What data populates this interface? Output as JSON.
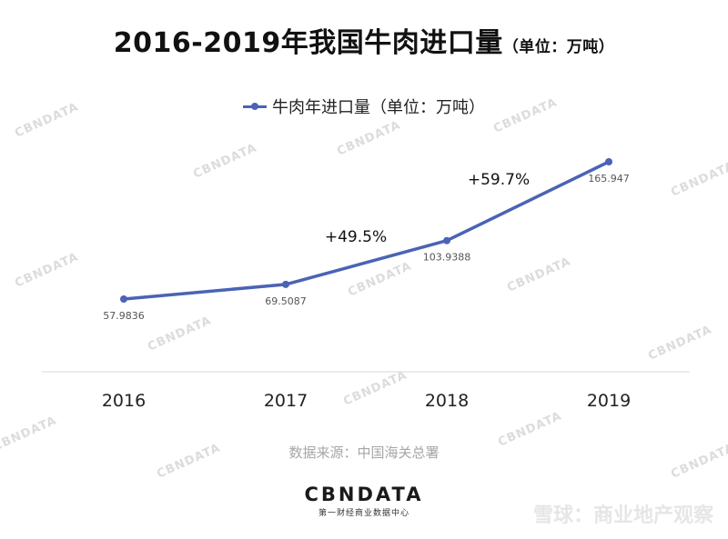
{
  "header": {
    "title": "2016-2019年我国牛肉进口量",
    "unit": "（单位：万吨）"
  },
  "legend": {
    "label": "牛肉年进口量（单位：万吨）"
  },
  "chart_data": {
    "type": "line",
    "categories": [
      "2016",
      "2017",
      "2018",
      "2019"
    ],
    "series": [
      {
        "name": "牛肉年进口量（单位：万吨）",
        "values": [
          57.9836,
          69.5087,
          103.9388,
          165.947
        ],
        "data_labels": [
          "57.9836",
          "69.5087",
          "103.9388",
          "165.947"
        ],
        "color": "#4a63b5"
      }
    ],
    "annotations": [
      {
        "between": [
          "2017",
          "2018"
        ],
        "text": "+49.5%"
      },
      {
        "between": [
          "2018",
          "2019"
        ],
        "text": "+59.7%"
      }
    ],
    "title": "2016-2019年我国牛肉进口量",
    "xlabel": "",
    "ylabel": "",
    "ylim": [
      0,
      190
    ],
    "grid": false,
    "legend_position": "top-center"
  },
  "footer": {
    "source": "数据来源：中国海关总署",
    "brand_logo": "CBNDATA",
    "brand_tagline": "第一财经商业数据中心",
    "watermark_text": "雪球：商业地产观察",
    "bg_watermark": "CBNDATA"
  }
}
